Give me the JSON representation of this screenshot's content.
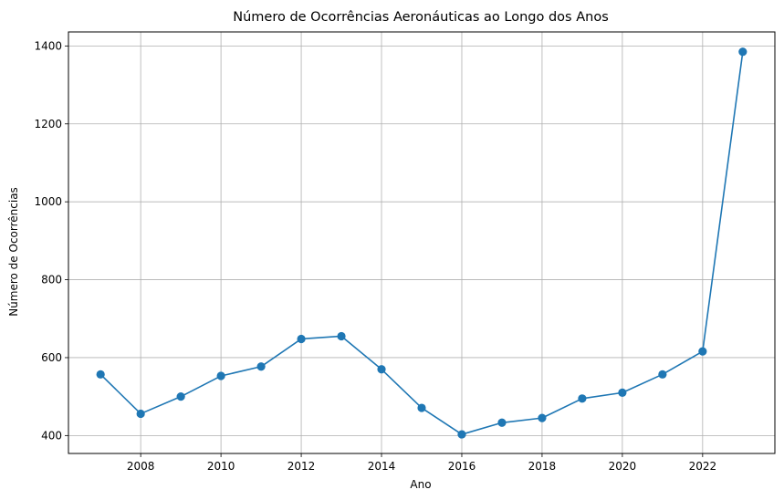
{
  "chart_data": {
    "type": "line",
    "title": "Número de Ocorrências Aeronáuticas ao Longo dos Anos",
    "xlabel": "Ano",
    "ylabel": "Número de Ocorrências",
    "x": [
      2007,
      2008,
      2009,
      2010,
      2011,
      2012,
      2013,
      2014,
      2015,
      2016,
      2017,
      2018,
      2019,
      2020,
      2021,
      2022,
      2023
    ],
    "series": [
      {
        "values": [
          557,
          456,
          500,
          553,
          577,
          648,
          655,
          570,
          471,
          403,
          433,
          445,
          495,
          510,
          557,
          616,
          1385
        ],
        "color": "#1f77b4",
        "marker": "circle"
      }
    ],
    "xlim": [
      2006.2,
      2023.8
    ],
    "ylim": [
      354,
      1436
    ],
    "xticks": [
      2008,
      2010,
      2012,
      2014,
      2016,
      2018,
      2020,
      2022
    ],
    "yticks": [
      400,
      600,
      800,
      1000,
      1200,
      1400
    ],
    "grid": true
  }
}
